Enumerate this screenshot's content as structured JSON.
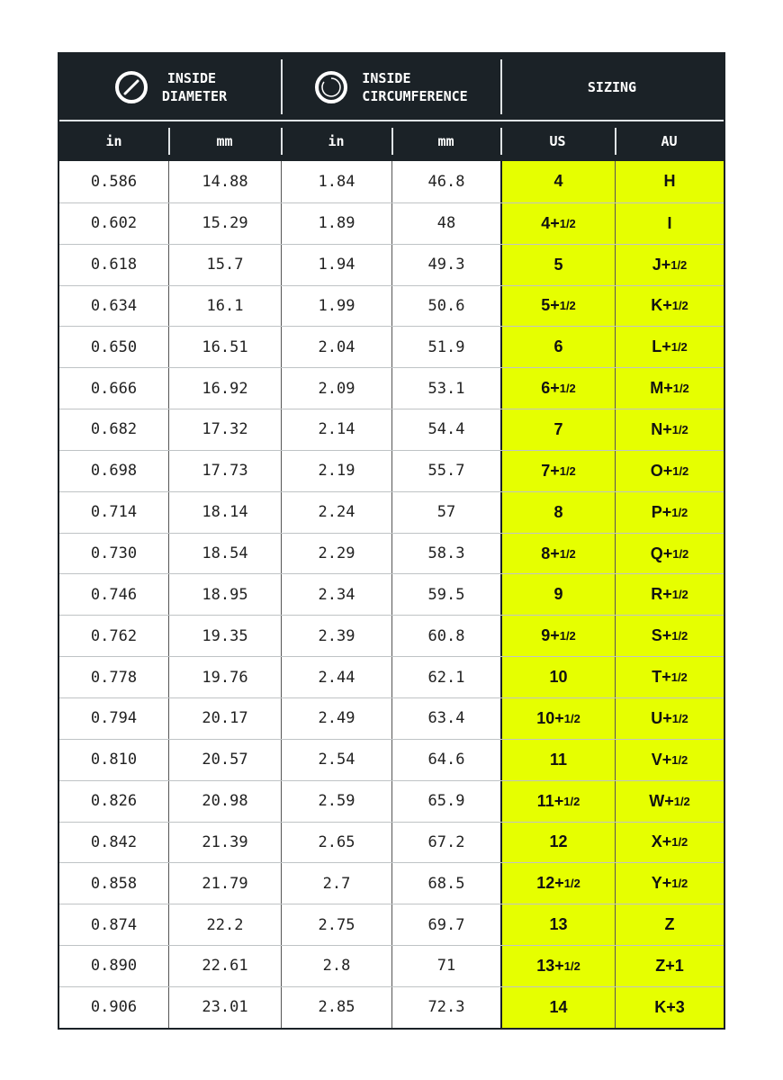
{
  "headers": {
    "diameter": {
      "line1": "INSIDE",
      "line2": "DIAMETER",
      "icon": "diameter-icon"
    },
    "circumference": {
      "line1": "INSIDE",
      "line2": "CIRCUMFERENCE",
      "icon": "circumference-icon"
    },
    "sizing": "SIZING",
    "sub": [
      "in",
      "mm",
      "in",
      "mm",
      "US",
      "AU"
    ]
  },
  "colors": {
    "header_bg": "#1b2227",
    "highlight": "#e6ff00"
  },
  "rows": [
    {
      "d_in": "0.586",
      "d_mm": "14.88",
      "c_in": "1.84",
      "c_mm": "46.8",
      "us": "4",
      "us_frac": "",
      "au": "H",
      "au_frac": ""
    },
    {
      "d_in": "0.602",
      "d_mm": "15.29",
      "c_in": "1.89",
      "c_mm": "48",
      "us": "4+",
      "us_frac": "1/2",
      "au": "I",
      "au_frac": ""
    },
    {
      "d_in": "0.618",
      "d_mm": "15.7",
      "c_in": "1.94",
      "c_mm": "49.3",
      "us": "5",
      "us_frac": "",
      "au": "J+",
      "au_frac": "1/2"
    },
    {
      "d_in": "0.634",
      "d_mm": "16.1",
      "c_in": "1.99",
      "c_mm": "50.6",
      "us": "5+",
      "us_frac": "1/2",
      "au": "K+",
      "au_frac": "1/2"
    },
    {
      "d_in": "0.650",
      "d_mm": "16.51",
      "c_in": "2.04",
      "c_mm": "51.9",
      "us": "6",
      "us_frac": "",
      "au": "L+",
      "au_frac": "1/2"
    },
    {
      "d_in": "0.666",
      "d_mm": "16.92",
      "c_in": "2.09",
      "c_mm": "53.1",
      "us": "6+",
      "us_frac": "1/2",
      "au": "M+",
      "au_frac": "1/2"
    },
    {
      "d_in": "0.682",
      "d_mm": "17.32",
      "c_in": "2.14",
      "c_mm": "54.4",
      "us": "7",
      "us_frac": "",
      "au": "N+",
      "au_frac": "1/2"
    },
    {
      "d_in": "0.698",
      "d_mm": "17.73",
      "c_in": "2.19",
      "c_mm": "55.7",
      "us": "7+",
      "us_frac": "1/2",
      "au": "O+",
      "au_frac": "1/2"
    },
    {
      "d_in": "0.714",
      "d_mm": "18.14",
      "c_in": "2.24",
      "c_mm": "57",
      "us": "8",
      "us_frac": "",
      "au": "P+",
      "au_frac": "1/2"
    },
    {
      "d_in": "0.730",
      "d_mm": "18.54",
      "c_in": "2.29",
      "c_mm": "58.3",
      "us": "8+",
      "us_frac": "1/2",
      "au": "Q+",
      "au_frac": "1/2"
    },
    {
      "d_in": "0.746",
      "d_mm": "18.95",
      "c_in": "2.34",
      "c_mm": "59.5",
      "us": "9",
      "us_frac": "",
      "au": "R+",
      "au_frac": "1/2"
    },
    {
      "d_in": "0.762",
      "d_mm": "19.35",
      "c_in": "2.39",
      "c_mm": "60.8",
      "us": "9+",
      "us_frac": "1/2",
      "au": "S+",
      "au_frac": "1/2"
    },
    {
      "d_in": "0.778",
      "d_mm": "19.76",
      "c_in": "2.44",
      "c_mm": "62.1",
      "us": "10",
      "us_frac": "",
      "au": "T+",
      "au_frac": "1/2"
    },
    {
      "d_in": "0.794",
      "d_mm": "20.17",
      "c_in": "2.49",
      "c_mm": "63.4",
      "us": "10+",
      "us_frac": "1/2",
      "au": "U+",
      "au_frac": "1/2"
    },
    {
      "d_in": "0.810",
      "d_mm": "20.57",
      "c_in": "2.54",
      "c_mm": "64.6",
      "us": "11",
      "us_frac": "",
      "au": "V+",
      "au_frac": "1/2"
    },
    {
      "d_in": "0.826",
      "d_mm": "20.98",
      "c_in": "2.59",
      "c_mm": "65.9",
      "us": "11+",
      "us_frac": "1/2",
      "au": "W+",
      "au_frac": "1/2"
    },
    {
      "d_in": "0.842",
      "d_mm": "21.39",
      "c_in": "2.65",
      "c_mm": "67.2",
      "us": "12",
      "us_frac": "",
      "au": "X+",
      "au_frac": "1/2"
    },
    {
      "d_in": "0.858",
      "d_mm": "21.79",
      "c_in": "2.7",
      "c_mm": "68.5",
      "us": "12+",
      "us_frac": "1/2",
      "au": "Y+",
      "au_frac": "1/2"
    },
    {
      "d_in": "0.874",
      "d_mm": "22.2",
      "c_in": "2.75",
      "c_mm": "69.7",
      "us": "13",
      "us_frac": "",
      "au": "Z",
      "au_frac": ""
    },
    {
      "d_in": "0.890",
      "d_mm": "22.61",
      "c_in": "2.8",
      "c_mm": "71",
      "us": "13+",
      "us_frac": "1/2",
      "au": "Z+1",
      "au_frac": ""
    },
    {
      "d_in": "0.906",
      "d_mm": "23.01",
      "c_in": "2.85",
      "c_mm": "72.3",
      "us": "14",
      "us_frac": "",
      "au": "K+3",
      "au_frac": ""
    }
  ]
}
